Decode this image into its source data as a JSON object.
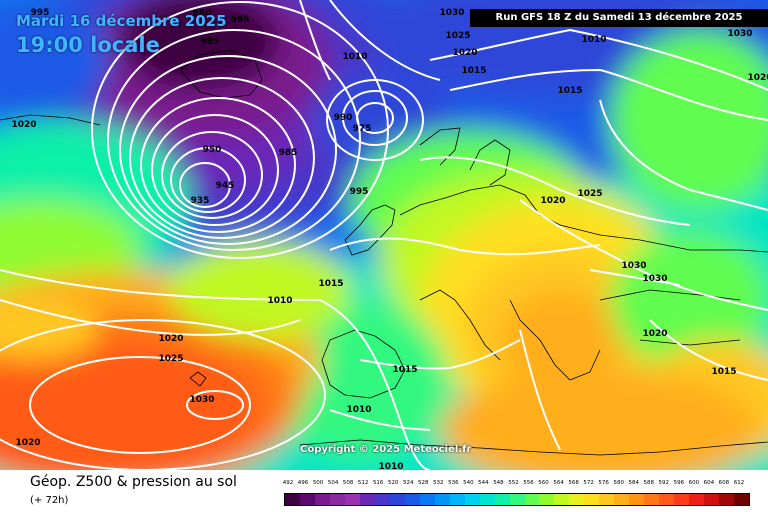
{
  "header": {
    "date": "Mardi 16 décembre 2025",
    "local_time": "19:00 locale",
    "run": "Run GFS 18 Z du Samedi 13 décembre 2025"
  },
  "map": {
    "isobar_labels": [
      "995",
      "980",
      "995",
      "1030",
      "1025",
      "1010",
      "1030",
      "985",
      "1020",
      "1015",
      "1010",
      "1015",
      "1020",
      "1020",
      "975",
      "990",
      "985",
      "950",
      "945",
      "935",
      "995",
      "1025",
      "1020",
      "1010",
      "1015",
      "1030",
      "1030",
      "1020",
      "1020",
      "1025",
      "1015",
      "1015",
      "1030",
      "1010",
      "1020",
      "1010"
    ],
    "copyright": "Copyright © 2025 Meteociel.fr",
    "colors": {
      "land_outline": "#000000",
      "isobars": "#ffffff",
      "low_center": "#2b0033",
      "high_center": "#ff4a1a"
    }
  },
  "footer": {
    "field_title": "Géop. Z500 & pression au sol",
    "lead_time": "(+ 72h)"
  },
  "legend": {
    "unit_ticks": [
      "492",
      "496",
      "500",
      "504",
      "508",
      "512",
      "516",
      "520",
      "524",
      "528",
      "532",
      "536",
      "540",
      "544",
      "548",
      "552",
      "556",
      "560",
      "564",
      "568",
      "572",
      "576",
      "580",
      "584",
      "588",
      "592",
      "596",
      "600",
      "604",
      "608",
      "612"
    ],
    "colors": [
      "#3d0040",
      "#5a0a6e",
      "#7a1a8e",
      "#8a2aa0",
      "#9b30b0",
      "#6a28b8",
      "#4a36c8",
      "#2e46d8",
      "#1a5ae6",
      "#0a78f0",
      "#0096f6",
      "#00b4fa",
      "#00d0f0",
      "#00e4d0",
      "#10f0a8",
      "#30f880",
      "#60fc50",
      "#90fc30",
      "#c0f820",
      "#e8f020",
      "#ffe020",
      "#ffc820",
      "#ffae1c",
      "#ff9418",
      "#ff7818",
      "#ff5a18",
      "#ff3c18",
      "#f02018",
      "#d01010",
      "#a00808",
      "#700000"
    ]
  }
}
